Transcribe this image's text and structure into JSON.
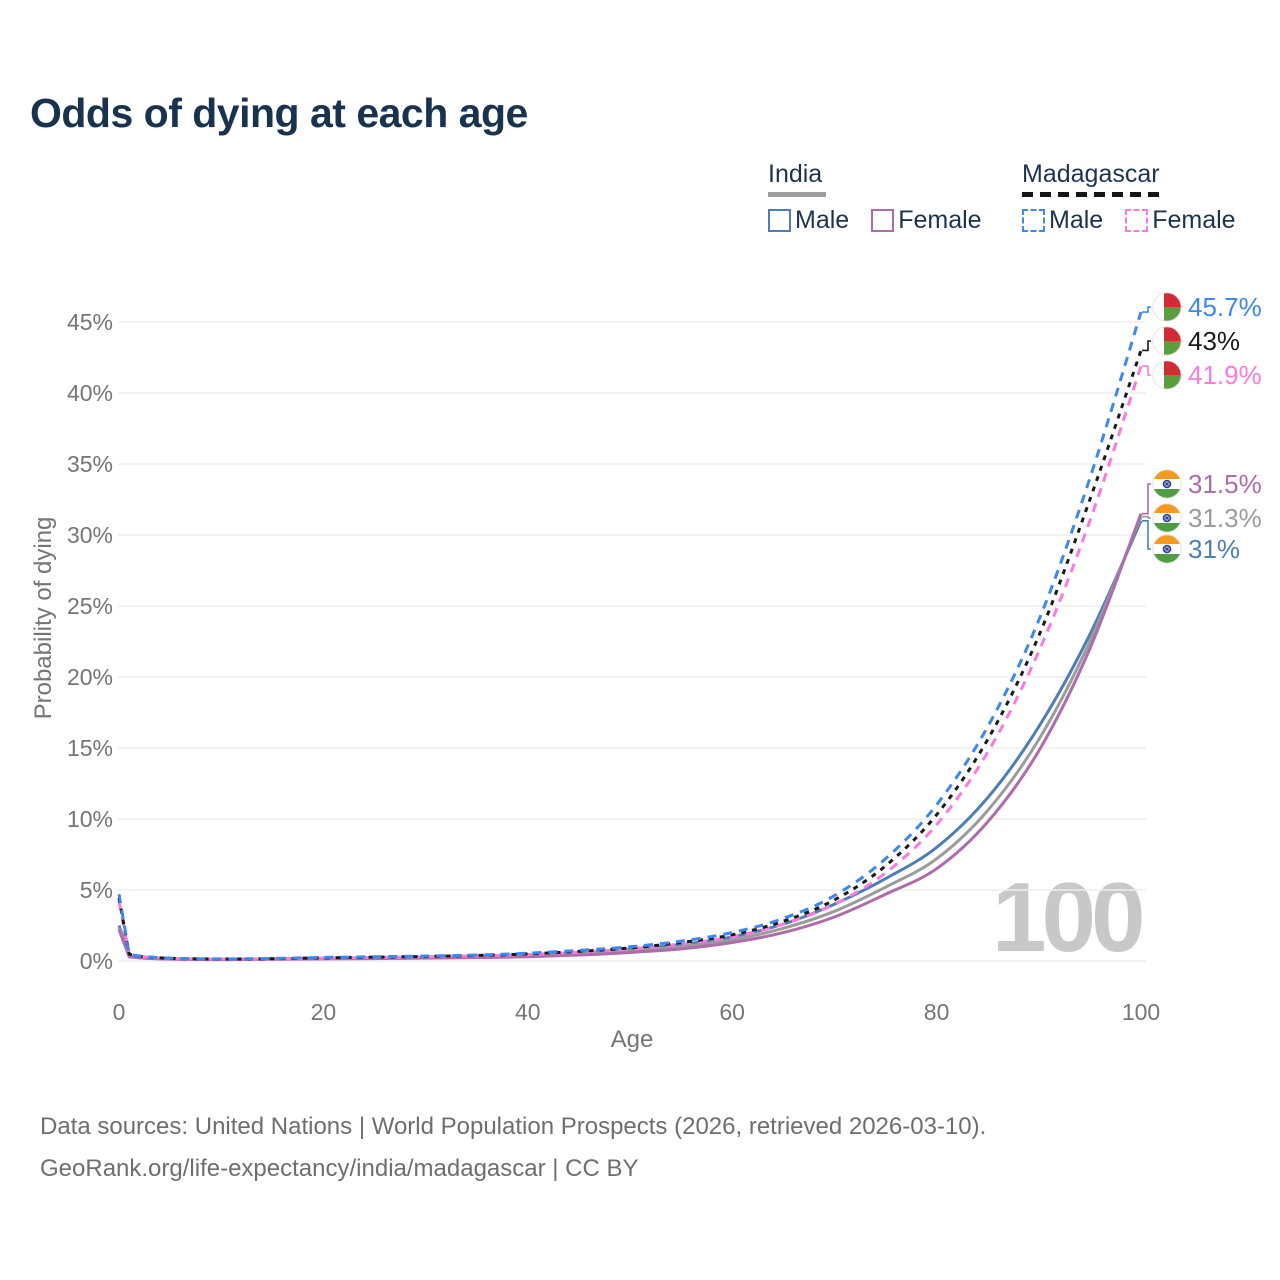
{
  "title": "Odds of dying at each age",
  "legend": {
    "groups": [
      {
        "label": "India",
        "underline_style": "solid",
        "underline_color": "#9e9e9e",
        "items": [
          {
            "label": "Male",
            "color": "#4d7eb5",
            "swatch_style": "solid"
          },
          {
            "label": "Female",
            "color": "#ad6caa",
            "swatch_style": "solid"
          }
        ]
      },
      {
        "label": "Madagascar",
        "underline_style": "dashed",
        "underline_color": "#151515",
        "items": [
          {
            "label": "Male",
            "color": "#3d87f0",
            "swatch_style": "dashed"
          },
          {
            "label": "Female",
            "color": "#f97bdd",
            "swatch_style": "dashed"
          }
        ]
      }
    ]
  },
  "chart_data": {
    "type": "line",
    "title": "Odds of dying at each age",
    "xlabel": "Age",
    "ylabel": "Probability of dying",
    "x": [
      0,
      1,
      2,
      5,
      10,
      15,
      20,
      25,
      30,
      35,
      40,
      45,
      50,
      55,
      60,
      65,
      70,
      75,
      80,
      85,
      90,
      95,
      100
    ],
    "xticks": [
      0,
      20,
      40,
      60,
      80,
      100
    ],
    "yticks_percent": [
      0,
      5,
      10,
      15,
      20,
      25,
      30,
      35,
      40,
      45
    ],
    "xlim": [
      0,
      100
    ],
    "ylim_percent": [
      0,
      46
    ],
    "grid": "horizontal",
    "legend_position": "top-right",
    "watermark": "100",
    "series": [
      {
        "id": "madagascar-male",
        "country": "Madagascar",
        "sex": "Male",
        "line_style": "dashed",
        "color": "#3d87f0",
        "flag": "madagascar-flag",
        "end_label": "45.7%",
        "values": [
          4.7,
          0.5,
          0.35,
          0.2,
          0.15,
          0.18,
          0.25,
          0.3,
          0.35,
          0.42,
          0.55,
          0.75,
          1.0,
          1.4,
          2.0,
          3.0,
          4.6,
          7.2,
          11.0,
          16.5,
          24.0,
          34.0,
          45.7
        ]
      },
      {
        "id": "madagascar-all",
        "country": "Madagascar",
        "sex": "All",
        "line_style": "dashed",
        "color": "#1a1a1a",
        "flag": "madagascar-flag",
        "end_label": "43%",
        "values": [
          4.45,
          0.48,
          0.34,
          0.19,
          0.14,
          0.16,
          0.22,
          0.27,
          0.32,
          0.39,
          0.5,
          0.68,
          0.92,
          1.3,
          1.85,
          2.8,
          4.3,
          6.7,
          10.3,
          15.6,
          22.9,
          32.5,
          43.0
        ]
      },
      {
        "id": "madagascar-female",
        "country": "Madagascar",
        "sex": "Female",
        "line_style": "dashed",
        "color": "#f97bdd",
        "flag": "madagascar-flag",
        "end_label": "41.9%",
        "values": [
          4.2,
          0.45,
          0.32,
          0.18,
          0.13,
          0.15,
          0.2,
          0.25,
          0.3,
          0.36,
          0.46,
          0.62,
          0.85,
          1.2,
          1.7,
          2.6,
          4.0,
          6.2,
          9.6,
          14.7,
          21.8,
          31.0,
          41.9
        ]
      },
      {
        "id": "india-female",
        "country": "India",
        "sex": "Female",
        "line_style": "solid",
        "color": "#ad6caa",
        "flag": "india-flag",
        "end_label": "31.5%",
        "values": [
          2.2,
          0.3,
          0.22,
          0.13,
          0.1,
          0.12,
          0.15,
          0.17,
          0.2,
          0.24,
          0.3,
          0.42,
          0.6,
          0.85,
          1.3,
          2.0,
          3.1,
          4.7,
          6.5,
          9.8,
          14.8,
          22.0,
          31.5
        ]
      },
      {
        "id": "india-all",
        "country": "India",
        "sex": "All",
        "line_style": "solid",
        "color": "#9b9b9b",
        "flag": "india-flag",
        "end_label": "31.3%",
        "values": [
          2.35,
          0.32,
          0.23,
          0.14,
          0.11,
          0.13,
          0.18,
          0.2,
          0.22,
          0.27,
          0.35,
          0.48,
          0.7,
          1.0,
          1.5,
          2.3,
          3.5,
          5.2,
          7.2,
          10.6,
          15.6,
          22.5,
          31.3
        ]
      },
      {
        "id": "india-male",
        "country": "India",
        "sex": "Male",
        "line_style": "solid",
        "color": "#4d7eb5",
        "flag": "india-flag",
        "end_label": "31%",
        "values": [
          2.5,
          0.35,
          0.25,
          0.15,
          0.12,
          0.15,
          0.2,
          0.22,
          0.25,
          0.3,
          0.4,
          0.55,
          0.8,
          1.15,
          1.7,
          2.6,
          4.0,
          5.8,
          8.0,
          11.5,
          16.5,
          23.0,
          31.0
        ]
      }
    ]
  },
  "footer": {
    "line1": "Data sources: United Nations | World Population Prospects (2026, retrieved 2026-03-10).",
    "line2": "GeoRank.org/life-expectancy/india/madagascar | CC BY"
  }
}
